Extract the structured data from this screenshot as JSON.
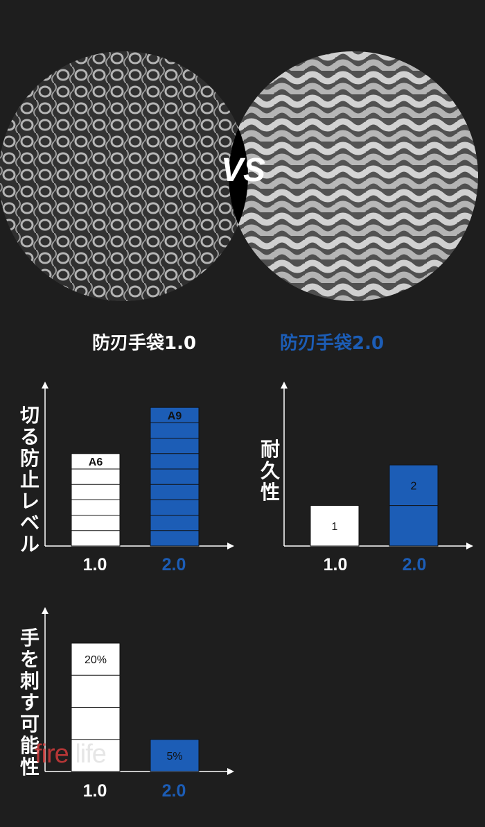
{
  "hero": {
    "vs_text": "VS",
    "left_label": "防刃手袋1.0",
    "right_label": "防刃手袋2.0",
    "accent": "#1c5db6"
  },
  "colors": {
    "white_bar": "#ffffff",
    "blue_bar": "#1c5db6",
    "axis": "#ffffff",
    "background": "#1e1e1e"
  },
  "chart_data": [
    {
      "type": "bar",
      "ylabel": "切る防止レベル",
      "categories": [
        "1.0",
        "2.0"
      ],
      "values": [
        6,
        9
      ],
      "data_labels": [
        "A6",
        "A9"
      ],
      "segments": [
        6,
        9
      ],
      "colors": [
        "#ffffff",
        "#1c5db6"
      ],
      "ylim": [
        0,
        10
      ]
    },
    {
      "type": "bar",
      "ylabel": "耐久性",
      "categories": [
        "1.0",
        "2.0"
      ],
      "values": [
        1,
        2
      ],
      "data_labels": [
        "1",
        "2"
      ],
      "segments": [
        1,
        2
      ],
      "colors": [
        "#ffffff",
        "#1c5db6"
      ],
      "ylim": [
        0,
        3.8
      ]
    },
    {
      "type": "bar",
      "ylabel": "手を刺す可能性",
      "categories": [
        "1.0",
        "2.0"
      ],
      "values": [
        20,
        5
      ],
      "data_labels": [
        "20%",
        "5%"
      ],
      "segments": [
        4,
        1
      ],
      "colors": [
        "#ffffff",
        "#1c5db6"
      ],
      "ylim": [
        0,
        24
      ]
    }
  ],
  "watermark": {
    "fire": "fire",
    "life": " life",
    "sub": ""
  }
}
